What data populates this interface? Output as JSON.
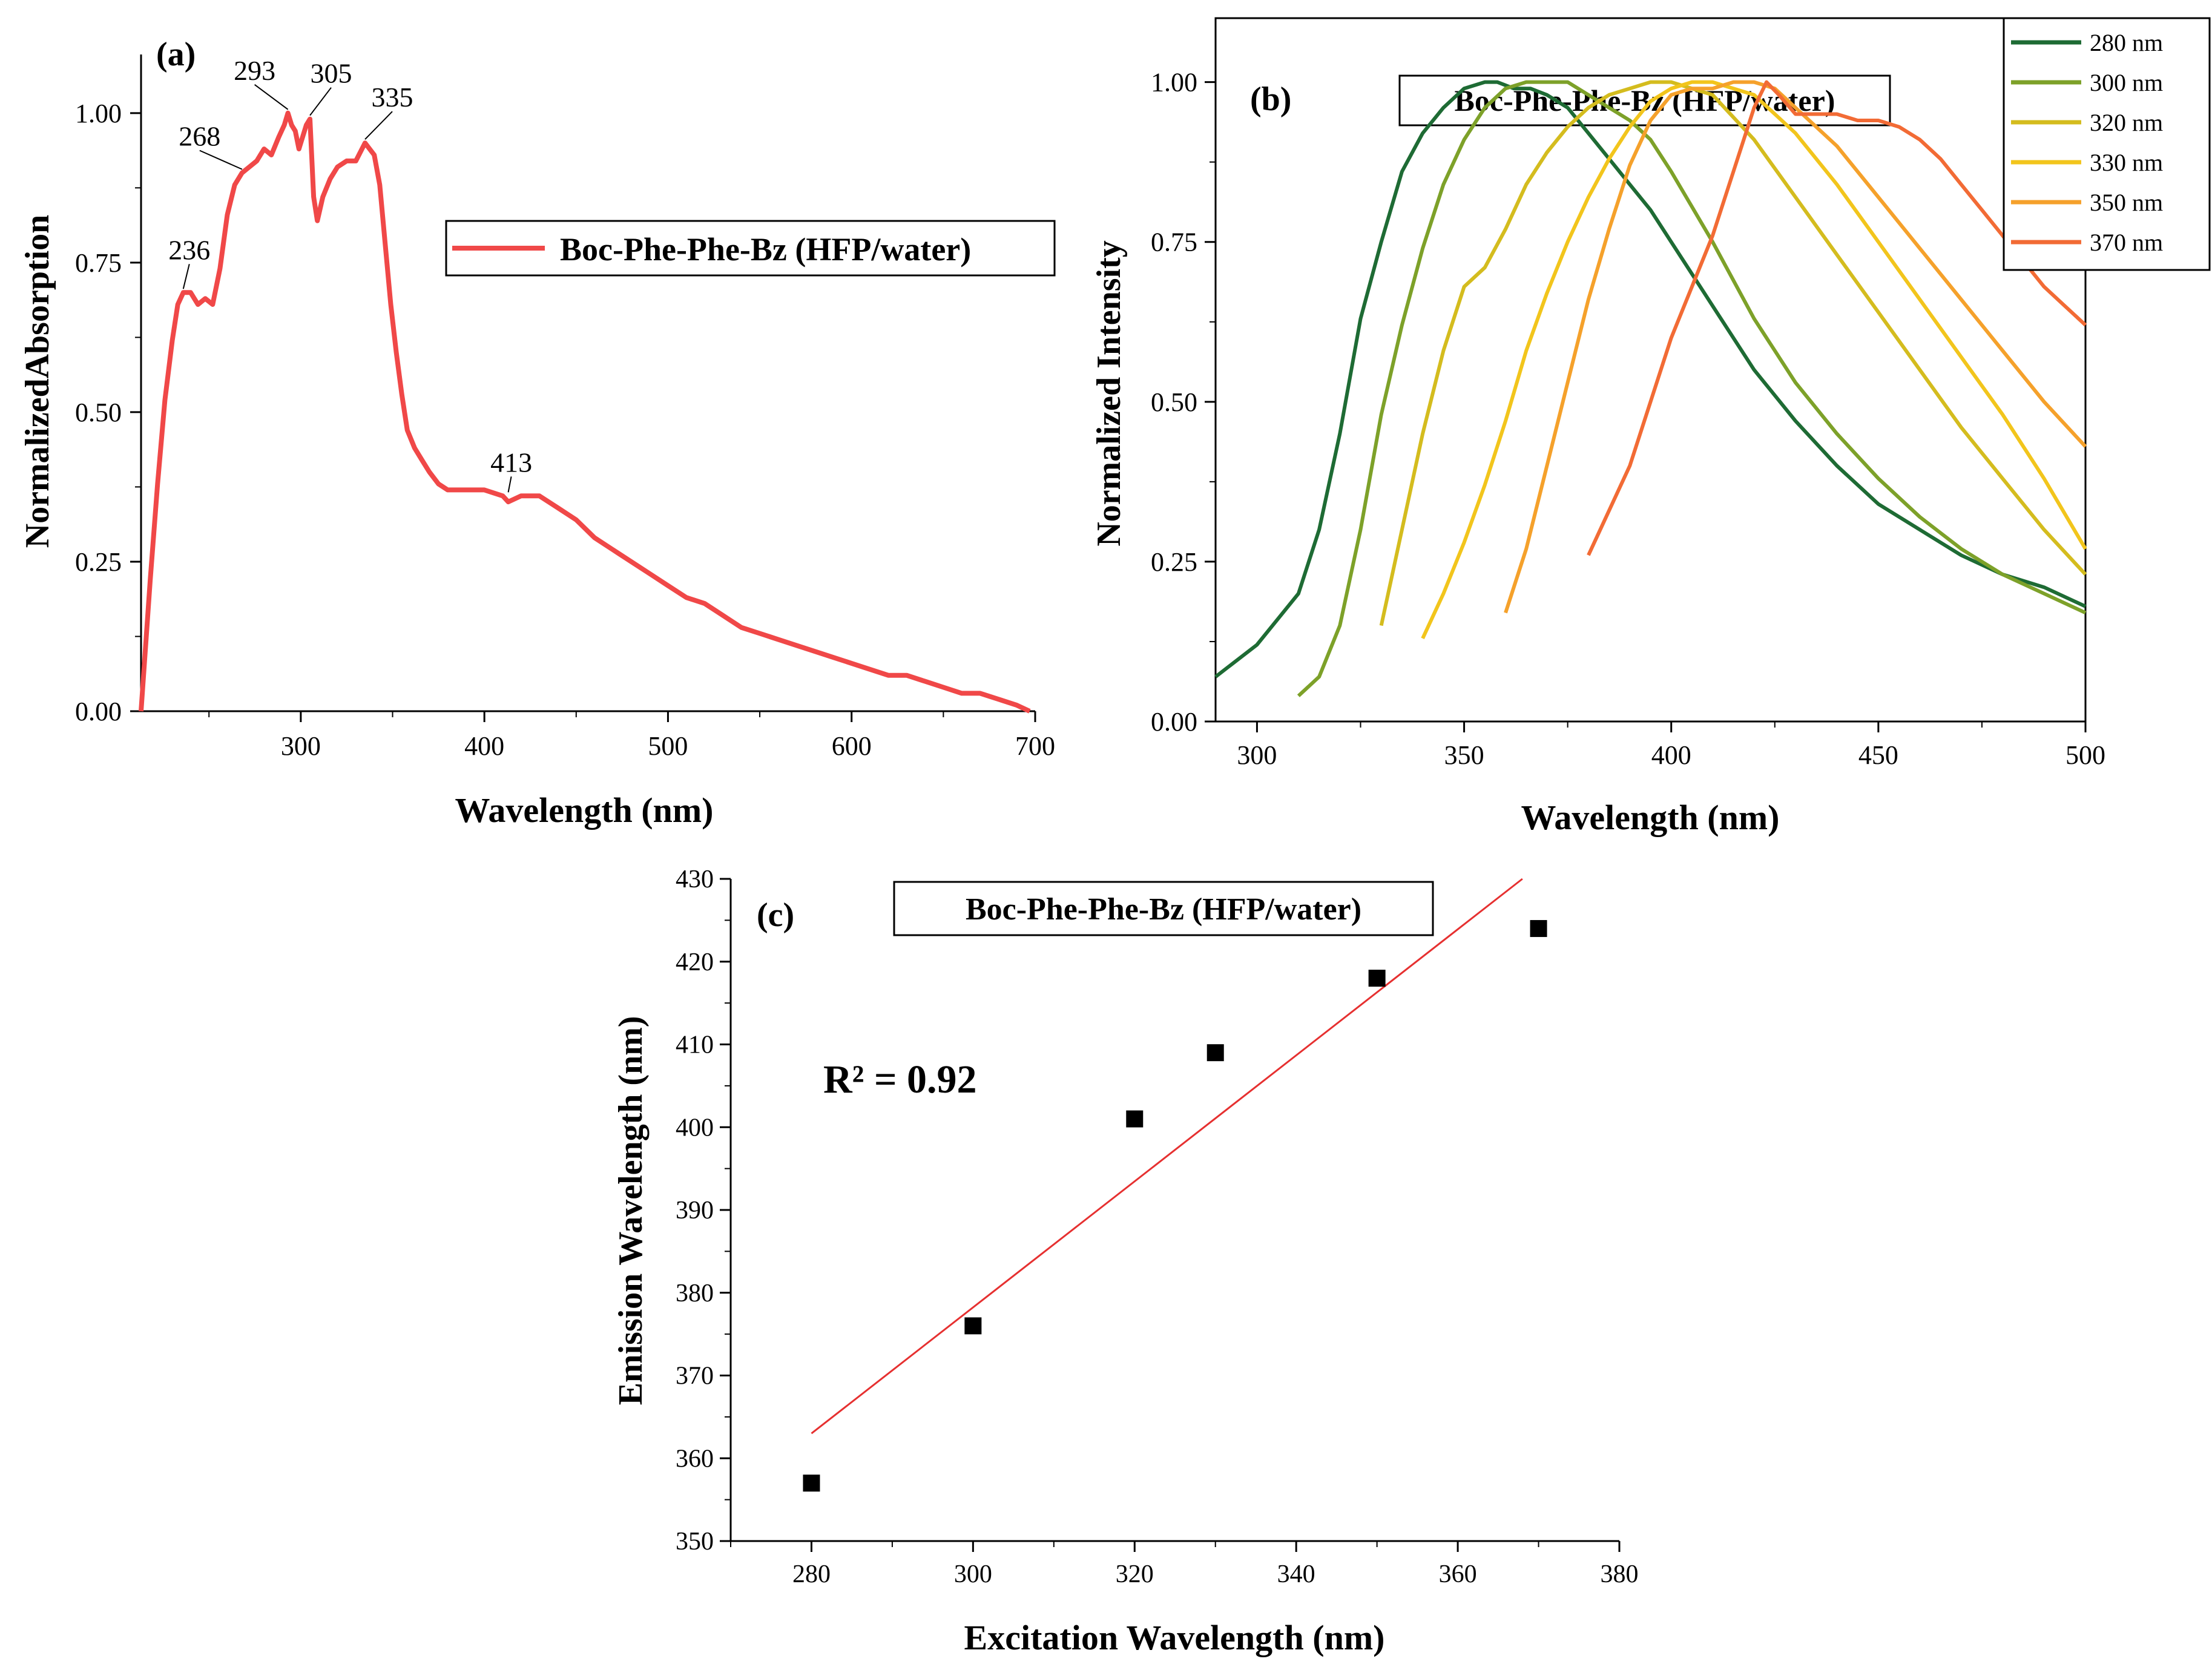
{
  "chart_data": [
    {
      "panel": "(a)",
      "type": "line",
      "xlabel": "Wavelength (nm)",
      "ylabel": "NormalizedAbsorption",
      "xlim": [
        213,
        700
      ],
      "ylim": [
        0,
        1.1
      ],
      "xticks": [
        300,
        400,
        500,
        600,
        700
      ],
      "yticks": [
        "0.00",
        "0.25",
        "0.50",
        "0.75",
        "1.00"
      ],
      "series": [
        {
          "name": "Boc-Phe-Phe-Bz (HFP/water)",
          "color": "#f04848",
          "x": [
            213,
            218,
            222,
            226,
            230,
            233,
            236,
            240,
            244,
            248,
            252,
            256,
            260,
            264,
            268,
            272,
            276,
            280,
            284,
            288,
            291,
            293,
            295,
            297,
            299,
            301,
            303,
            305,
            307,
            309,
            312,
            316,
            320,
            325,
            330,
            335,
            340,
            343,
            346,
            349,
            352,
            355,
            358,
            362,
            366,
            370,
            375,
            380,
            385,
            390,
            400,
            410,
            413,
            420,
            430,
            440,
            450,
            460,
            470,
            480,
            490,
            500,
            510,
            520,
            530,
            540,
            550,
            560,
            570,
            580,
            590,
            600,
            610,
            620,
            630,
            640,
            650,
            660,
            670,
            680,
            690,
            697
          ],
          "values": [
            0.0,
            0.22,
            0.38,
            0.52,
            0.62,
            0.68,
            0.7,
            0.7,
            0.68,
            0.69,
            0.68,
            0.74,
            0.83,
            0.88,
            0.9,
            0.91,
            0.92,
            0.94,
            0.93,
            0.96,
            0.98,
            1.0,
            0.98,
            0.97,
            0.94,
            0.96,
            0.98,
            0.99,
            0.86,
            0.82,
            0.86,
            0.89,
            0.91,
            0.92,
            0.92,
            0.95,
            0.93,
            0.88,
            0.78,
            0.68,
            0.6,
            0.53,
            0.47,
            0.44,
            0.42,
            0.4,
            0.38,
            0.37,
            0.37,
            0.37,
            0.37,
            0.36,
            0.35,
            0.36,
            0.36,
            0.34,
            0.32,
            0.29,
            0.27,
            0.25,
            0.23,
            0.21,
            0.19,
            0.18,
            0.16,
            0.14,
            0.13,
            0.12,
            0.11,
            0.1,
            0.09,
            0.08,
            0.07,
            0.06,
            0.06,
            0.05,
            0.04,
            0.03,
            0.03,
            0.02,
            0.01,
            0.0
          ]
        }
      ],
      "annotations": [
        {
          "text": "236",
          "x": 236,
          "y": 0.7
        },
        {
          "text": "268",
          "x": 268,
          "y": 0.9
        },
        {
          "text": "293",
          "x": 293,
          "y": 1.0
        },
        {
          "text": "305",
          "x": 305,
          "y": 0.99
        },
        {
          "text": "335",
          "x": 335,
          "y": 0.95
        },
        {
          "text": "413",
          "x": 413,
          "y": 0.36
        }
      ],
      "legend": "Boc-Phe-Phe-Bz (HFP/water)"
    },
    {
      "panel": "(b)",
      "type": "line",
      "title": "Boc-Phe-Phe-Bz (HFP/water)",
      "xlabel": "Wavelength (nm)",
      "ylabel": "Normalized Intensity",
      "xlim": [
        290,
        500
      ],
      "ylim": [
        0,
        1.1
      ],
      "xticks": [
        300,
        350,
        400,
        450,
        500
      ],
      "yticks": [
        "0.00",
        "0.25",
        "0.50",
        "0.75",
        "1.00"
      ],
      "series": [
        {
          "name": "280 nm",
          "color": "#1e6b34",
          "x": [
            290,
            300,
            310,
            315,
            320,
            325,
            330,
            335,
            340,
            345,
            350,
            355,
            358,
            362,
            366,
            370,
            375,
            380,
            385,
            390,
            395,
            400,
            410,
            420,
            430,
            440,
            450,
            460,
            470,
            480,
            490,
            500
          ],
          "values": [
            0.07,
            0.12,
            0.2,
            0.3,
            0.45,
            0.63,
            0.75,
            0.86,
            0.92,
            0.96,
            0.99,
            1.0,
            1.0,
            0.99,
            0.99,
            0.98,
            0.96,
            0.92,
            0.88,
            0.84,
            0.8,
            0.75,
            0.65,
            0.55,
            0.47,
            0.4,
            0.34,
            0.3,
            0.26,
            0.23,
            0.21,
            0.18
          ]
        },
        {
          "name": "300 nm",
          "color": "#7da129",
          "x": [
            310,
            315,
            320,
            325,
            330,
            335,
            340,
            345,
            350,
            355,
            360,
            365,
            370,
            375,
            380,
            385,
            390,
            395,
            400,
            410,
            420,
            430,
            440,
            450,
            460,
            470,
            480,
            490,
            500
          ],
          "values": [
            0.04,
            0.07,
            0.15,
            0.3,
            0.48,
            0.62,
            0.74,
            0.84,
            0.91,
            0.96,
            0.99,
            1.0,
            1.0,
            1.0,
            0.98,
            0.96,
            0.94,
            0.91,
            0.86,
            0.75,
            0.63,
            0.53,
            0.45,
            0.38,
            0.32,
            0.27,
            0.23,
            0.2,
            0.17
          ]
        },
        {
          "name": "320 nm",
          "color": "#d4bc1e",
          "x": [
            330,
            335,
            340,
            345,
            350,
            355,
            360,
            365,
            370,
            375,
            380,
            385,
            390,
            395,
            400,
            405,
            410,
            420,
            430,
            440,
            450,
            460,
            470,
            480,
            490,
            500
          ],
          "values": [
            0.15,
            0.3,
            0.45,
            0.58,
            0.68,
            0.71,
            0.77,
            0.84,
            0.89,
            0.93,
            0.96,
            0.98,
            0.99,
            1.0,
            1.0,
            0.99,
            0.98,
            0.91,
            0.82,
            0.73,
            0.64,
            0.55,
            0.46,
            0.38,
            0.3,
            0.23
          ]
        },
        {
          "name": "330 nm",
          "color": "#f2c51c",
          "x": [
            340,
            345,
            350,
            355,
            360,
            365,
            370,
            375,
            380,
            385,
            390,
            395,
            400,
            405,
            410,
            415,
            420,
            430,
            440,
            450,
            460,
            470,
            480,
            490,
            500
          ],
          "values": [
            0.13,
            0.2,
            0.28,
            0.37,
            0.47,
            0.58,
            0.67,
            0.75,
            0.82,
            0.88,
            0.93,
            0.97,
            0.99,
            1.0,
            1.0,
            0.99,
            0.98,
            0.92,
            0.84,
            0.75,
            0.66,
            0.57,
            0.48,
            0.38,
            0.27
          ]
        },
        {
          "name": "350 nm",
          "color": "#f5a12b",
          "x": [
            360,
            365,
            370,
            375,
            380,
            385,
            390,
            395,
            400,
            405,
            410,
            415,
            420,
            425,
            430,
            440,
            450,
            460,
            470,
            480,
            490,
            500
          ],
          "values": [
            0.17,
            0.27,
            0.4,
            0.53,
            0.66,
            0.77,
            0.87,
            0.94,
            0.98,
            0.99,
            0.99,
            1.0,
            1.0,
            0.99,
            0.96,
            0.9,
            0.82,
            0.74,
            0.66,
            0.58,
            0.5,
            0.43
          ]
        },
        {
          "name": "370 nm",
          "color": "#f26b35",
          "x": [
            380,
            385,
            390,
            395,
            400,
            405,
            410,
            415,
            420,
            423,
            426,
            430,
            435,
            440,
            445,
            450,
            455,
            460,
            465,
            470,
            475,
            480,
            485,
            490,
            495,
            500
          ],
          "values": [
            0.26,
            0.33,
            0.4,
            0.5,
            0.6,
            0.68,
            0.76,
            0.86,
            0.96,
            1.0,
            0.98,
            0.95,
            0.95,
            0.95,
            0.94,
            0.94,
            0.93,
            0.91,
            0.88,
            0.84,
            0.8,
            0.76,
            0.72,
            0.68,
            0.65,
            0.62
          ]
        }
      ],
      "legend": "top-right"
    },
    {
      "panel": "(c)",
      "type": "scatter",
      "title": "Boc-Phe-Phe-Bz (HFP/water)",
      "xlabel": "Excitation Wavelength (nm)",
      "ylabel": "Emission Wavelength (nm)",
      "xlim": [
        270,
        380
      ],
      "ylim": [
        350,
        430
      ],
      "xticks": [
        280,
        300,
        320,
        340,
        360,
        380
      ],
      "yticks": [
        350,
        360,
        370,
        380,
        390,
        400,
        410,
        420,
        430
      ],
      "points": {
        "x": [
          280,
          300,
          320,
          330,
          350,
          370
        ],
        "y": [
          357,
          376,
          401,
          409,
          418,
          424
        ]
      },
      "fit": {
        "x": [
          280,
          368
        ],
        "y": [
          363,
          430
        ],
        "color": "#e63030"
      },
      "r2_label": "R² = 0.92"
    }
  ]
}
